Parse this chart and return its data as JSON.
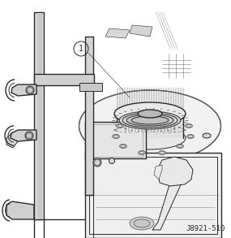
{
  "fig_label": "J8921-510",
  "callout_number": "1",
  "bg_color": "#ffffff",
  "line_color": "#2a2a2a",
  "figsize": [
    2.85,
    2.93
  ],
  "dpi": 100,
  "label_fontsize": 6.5,
  "bg_gray": "#f5f5f5",
  "mid_gray": "#d8d8d8",
  "dark_gray": "#a0a0a0"
}
